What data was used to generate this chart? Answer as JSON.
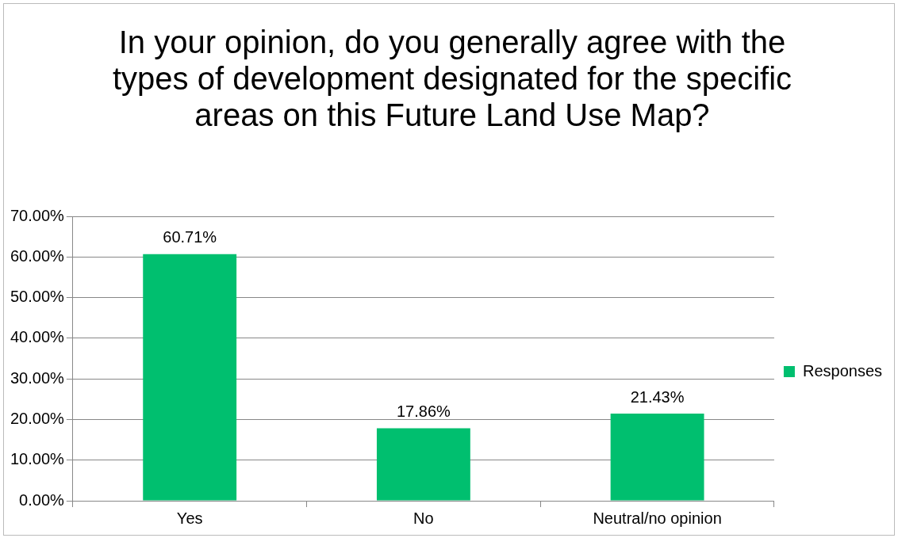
{
  "chart_data": {
    "type": "bar",
    "title": "In your opinion, do you generally agree with the types of development designated for the specific areas on this Future Land Use Map?",
    "categories": [
      "Yes",
      "No",
      "Neutral/no opinion"
    ],
    "series": [
      {
        "name": "Responses",
        "color": "#00bf6f",
        "values": [
          60.71,
          17.86,
          21.43
        ]
      }
    ],
    "value_labels": [
      "60.71%",
      "17.86%",
      "21.43%"
    ],
    "ylim": [
      0,
      70
    ],
    "yticks": [
      {
        "value": 0,
        "label": "0.00%"
      },
      {
        "value": 10,
        "label": "10.00%"
      },
      {
        "value": 20,
        "label": "20.00%"
      },
      {
        "value": 30,
        "label": "30.00%"
      },
      {
        "value": 40,
        "label": "40.00%"
      },
      {
        "value": 50,
        "label": "50.00%"
      },
      {
        "value": 60,
        "label": "60.00%"
      },
      {
        "value": 70,
        "label": "70.00%"
      }
    ],
    "grid": "y",
    "legend": "right"
  }
}
